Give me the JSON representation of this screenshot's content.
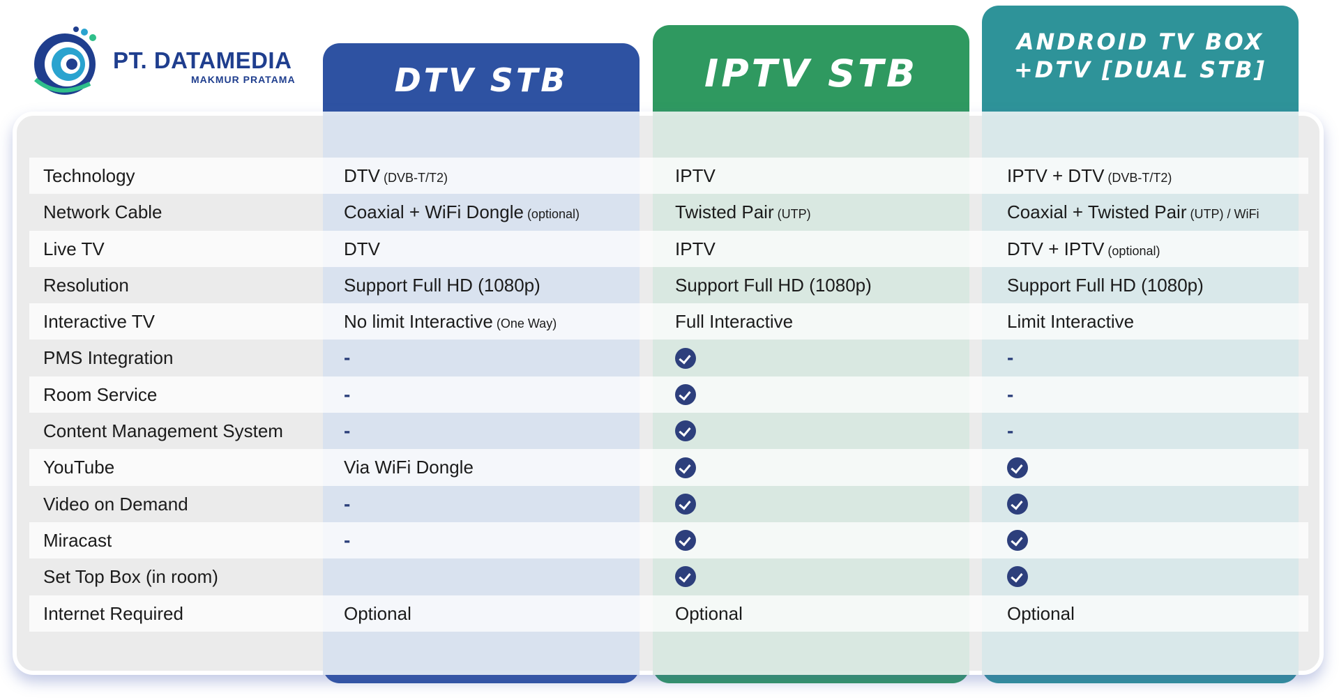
{
  "logo": {
    "name": "PT. DATAMEDIA",
    "subtitle": "MAKMUR PRATAMA"
  },
  "columns": [
    {
      "title": "DTV STB",
      "color": "#2e52a2"
    },
    {
      "title": "IPTV STB",
      "color": "#2f9960"
    },
    {
      "title_line1": "ANDROID TV BOX",
      "title_line2": "+DTV [DUAL STB]",
      "color": "#2e9399"
    }
  ],
  "rows": [
    {
      "feature": "Technology",
      "dtv": {
        "text": "DTV",
        "note": "(DVB-T/T2)"
      },
      "iptv": {
        "text": "IPTV",
        "note": ""
      },
      "android": {
        "text": "IPTV + DTV",
        "note": "(DVB-T/T2)"
      }
    },
    {
      "feature": "Network Cable",
      "dtv": {
        "text": "Coaxial + WiFi Dongle",
        "note": "(optional)"
      },
      "iptv": {
        "text": "Twisted Pair",
        "note": "(UTP)"
      },
      "android": {
        "text": "Coaxial + Twisted Pair",
        "note": "(UTP) / WiFi"
      }
    },
    {
      "feature": "Live TV",
      "dtv": {
        "text": "DTV",
        "note": ""
      },
      "iptv": {
        "text": "IPTV",
        "note": ""
      },
      "android": {
        "text": "DTV + IPTV",
        "note": "(optional)"
      }
    },
    {
      "feature": "Resolution",
      "dtv": {
        "text": "Support Full HD (1080p)",
        "note": ""
      },
      "iptv": {
        "text": "Support Full HD (1080p)",
        "note": ""
      },
      "android": {
        "text": "Support Full HD (1080p)",
        "note": ""
      }
    },
    {
      "feature": "Interactive TV",
      "dtv": {
        "text": "No limit Interactive",
        "note": "(One Way)"
      },
      "iptv": {
        "text": "Full Interactive",
        "note": ""
      },
      "android": {
        "text": "Limit Interactive",
        "note": ""
      }
    },
    {
      "feature": "PMS Integration",
      "dtv": "dash",
      "iptv": "check",
      "android": "dash"
    },
    {
      "feature": "Room Service",
      "dtv": "dash",
      "iptv": "check",
      "android": "dash"
    },
    {
      "feature": "Content Management System",
      "dtv": "dash",
      "iptv": "check",
      "android": "dash"
    },
    {
      "feature": "YouTube",
      "dtv": {
        "text": "Via WiFi Dongle",
        "note": ""
      },
      "iptv": "check",
      "android": "check"
    },
    {
      "feature": "Video on Demand",
      "dtv": "dash",
      "iptv": "check",
      "android": "check"
    },
    {
      "feature": "Miracast",
      "dtv": "dash",
      "iptv": "check",
      "android": "check"
    },
    {
      "feature": "Set Top Box (in room)",
      "dtv": "empty",
      "iptv": "check",
      "android": "check"
    },
    {
      "feature": "Internet Required",
      "dtv": {
        "text": "Optional",
        "note": ""
      },
      "iptv": {
        "text": "Optional",
        "note": ""
      },
      "android": {
        "text": "Optional",
        "note": ""
      }
    }
  ],
  "symbols": {
    "dash": "-",
    "check_icon": "check-circle-icon"
  }
}
